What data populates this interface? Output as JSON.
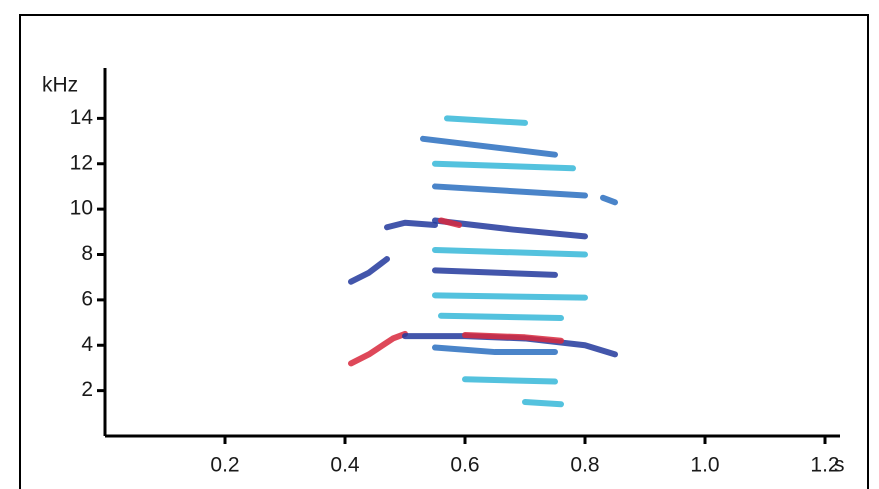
{
  "chart_data": {
    "type": "spectrogram",
    "y_label": "kHz",
    "x_label": "s",
    "xlim": [
      0,
      1.225
    ],
    "ylim": [
      0,
      16
    ],
    "xticks": [
      0.2,
      0.4,
      0.6,
      0.8,
      {
        "value": 1.0,
        "label": "1.0"
      },
      {
        "value": 1.2,
        "label": "1.2"
      }
    ],
    "yticks": [
      2,
      4,
      6,
      8,
      10,
      12,
      14
    ],
    "streaks": [
      {
        "x": [
          0.41,
          0.44,
          0.48,
          0.5
        ],
        "y": [
          3.2,
          3.6,
          4.3,
          4.5
        ],
        "color": "#d8283c"
      },
      {
        "x": [
          0.5,
          0.6,
          0.7,
          0.8,
          0.85
        ],
        "y": [
          4.4,
          4.4,
          4.3,
          4.0,
          3.6
        ],
        "color": "#22389c"
      },
      {
        "x": [
          0.6,
          0.7,
          0.76
        ],
        "y": [
          4.45,
          4.35,
          4.2
        ],
        "color": "#d8283c"
      },
      {
        "x": [
          0.55,
          0.65,
          0.75
        ],
        "y": [
          3.9,
          3.7,
          3.7
        ],
        "color": "#2a6fc0"
      },
      {
        "x": [
          0.41,
          0.44,
          0.47
        ],
        "y": [
          6.8,
          7.2,
          7.8
        ],
        "color": "#22389c"
      },
      {
        "x": [
          0.47,
          0.5,
          0.55
        ],
        "y": [
          9.2,
          9.4,
          9.3
        ],
        "color": "#22389c"
      },
      {
        "x": [
          0.55,
          0.65,
          0.75
        ],
        "y": [
          7.3,
          7.2,
          7.1
        ],
        "color": "#22389c"
      },
      {
        "x": [
          0.55,
          0.68,
          0.8
        ],
        "y": [
          9.5,
          9.1,
          8.8
        ],
        "color": "#22389c"
      },
      {
        "x": [
          0.56,
          0.59
        ],
        "y": [
          9.5,
          9.3
        ],
        "color": "#d8283c"
      },
      {
        "x": [
          0.55,
          0.8
        ],
        "y": [
          11.0,
          10.6
        ],
        "color": "#2a6fc0"
      },
      {
        "x": [
          0.53,
          0.75
        ],
        "y": [
          13.1,
          12.4
        ],
        "color": "#2a6fc0"
      },
      {
        "x": [
          0.83,
          0.85
        ],
        "y": [
          10.5,
          10.3
        ],
        "color": "#2a6fc0"
      },
      {
        "x": [
          0.57,
          0.7
        ],
        "y": [
          14.0,
          13.8
        ],
        "color": "#36b7d8"
      },
      {
        "x": [
          0.55,
          0.78
        ],
        "y": [
          12.0,
          11.8
        ],
        "color": "#36b7d8"
      },
      {
        "x": [
          0.55,
          0.8
        ],
        "y": [
          8.2,
          8.0
        ],
        "color": "#36b7d8"
      },
      {
        "x": [
          0.55,
          0.8
        ],
        "y": [
          6.2,
          6.1
        ],
        "color": "#36b7d8"
      },
      {
        "x": [
          0.56,
          0.76
        ],
        "y": [
          5.3,
          5.2
        ],
        "color": "#36b7d8"
      },
      {
        "x": [
          0.6,
          0.75
        ],
        "y": [
          2.5,
          2.4
        ],
        "color": "#36b7d8"
      },
      {
        "x": [
          0.7,
          0.76
        ],
        "y": [
          1.5,
          1.4
        ],
        "color": "#36b7d8"
      }
    ]
  }
}
